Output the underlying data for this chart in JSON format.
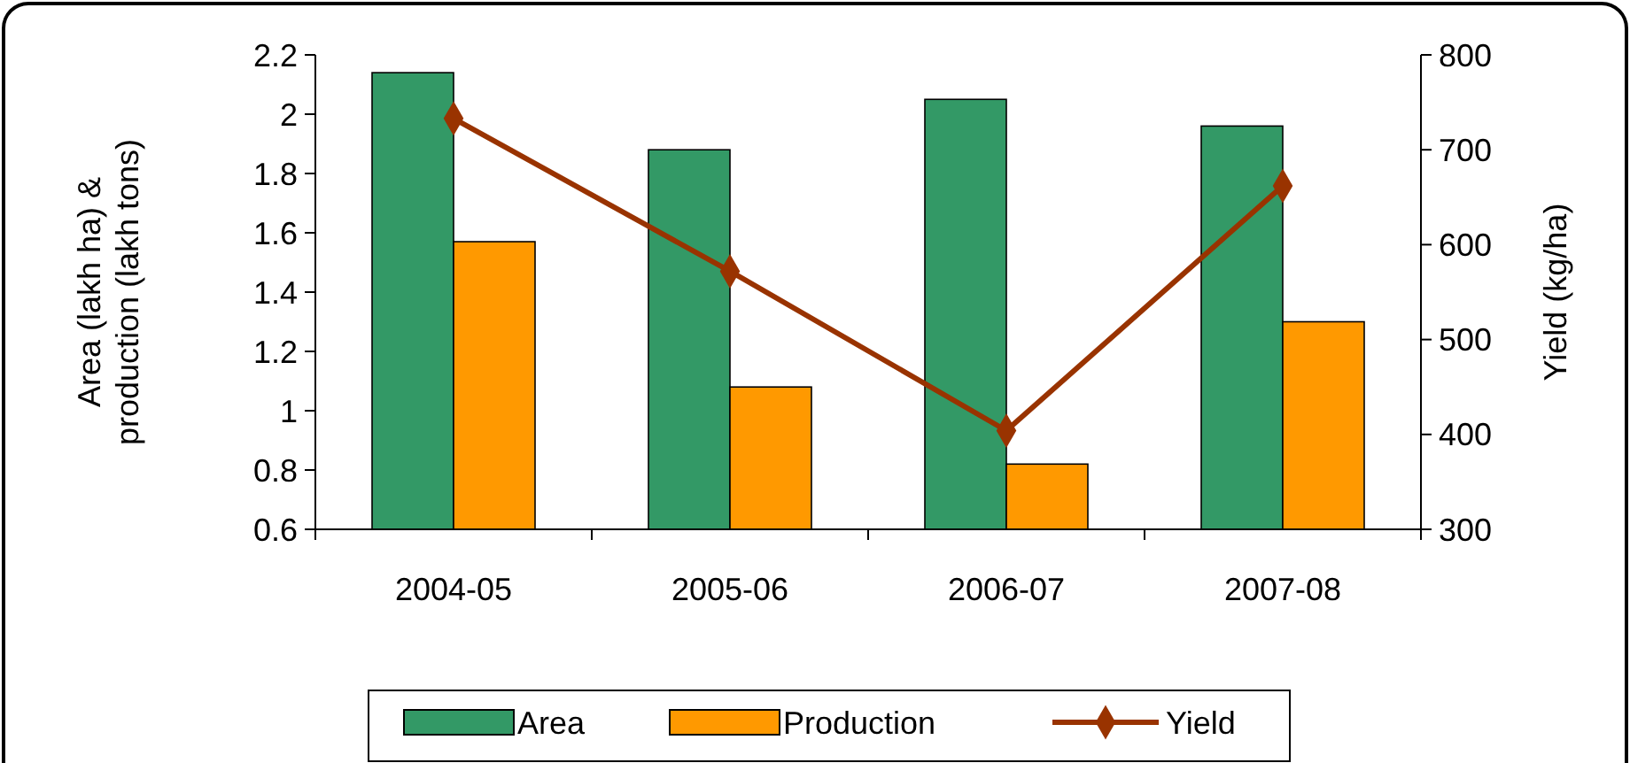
{
  "chart_data": {
    "type": "bar",
    "ylabel": "Area (lakh ha) & production (lakh tons)",
    "y2label": "Yield (kg/ha)",
    "categories": [
      "2004-05",
      "2005-06",
      "2006-07",
      "2007-08"
    ],
    "series": [
      {
        "name": "Area",
        "color": "#339966",
        "values": [
          2.14,
          1.88,
          2.05,
          1.96
        ]
      },
      {
        "name": "Production",
        "color": "#ff9900",
        "values": [
          1.57,
          1.08,
          0.82,
          1.3
        ]
      },
      {
        "name": "Yield",
        "type": "line",
        "axis": "y2",
        "color": "#993300",
        "marker": "diamond",
        "values": [
          733,
          572,
          404,
          662
        ]
      }
    ],
    "ylim": [
      0.6,
      2.2
    ],
    "yticks": [
      0.6,
      0.8,
      1,
      1.2,
      1.4,
      1.6,
      1.8,
      2,
      2.2
    ],
    "y2lim": [
      300,
      800
    ],
    "y2ticks": [
      300,
      400,
      500,
      600,
      700,
      800
    ],
    "legend": "bottom",
    "grid": false
  }
}
